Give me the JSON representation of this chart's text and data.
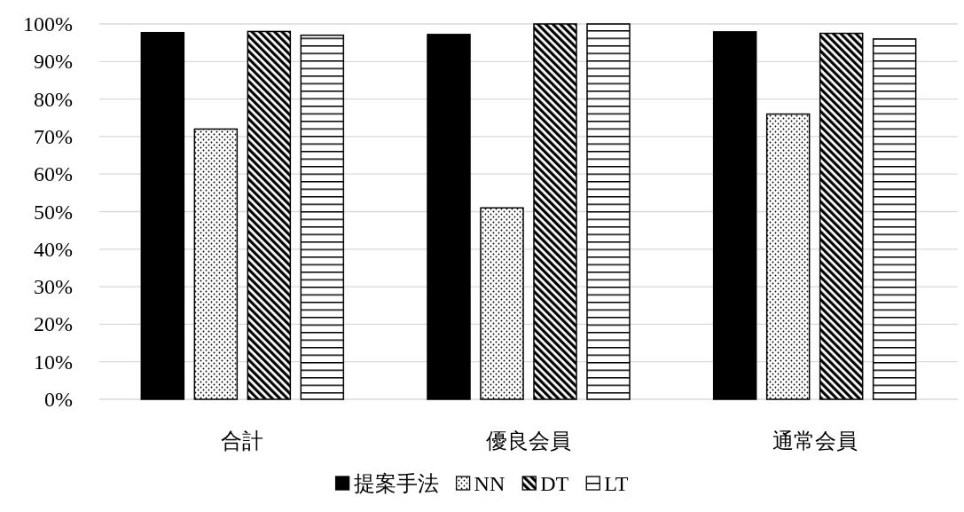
{
  "chart_data": {
    "type": "bar",
    "categories": [
      "合計",
      "優良会員",
      "通常会員"
    ],
    "series": [
      {
        "name": "提案手法",
        "color": "#000000",
        "values": [
          97.7,
          97.2,
          97.9
        ]
      },
      {
        "name": "NN",
        "color": "#000000",
        "values": [
          72,
          51,
          76
        ]
      },
      {
        "name": "DT",
        "color": "#000000",
        "values": [
          98,
          100,
          97.5
        ]
      },
      {
        "name": "LT",
        "color": "#000000",
        "values": [
          97,
          100,
          96
        ]
      }
    ],
    "ylim": [
      0,
      100
    ],
    "yticks": [
      {
        "value": 0,
        "label": "0%"
      },
      {
        "value": 10,
        "label": "10%"
      },
      {
        "value": 20,
        "label": "20%"
      },
      {
        "value": 30,
        "label": "30%"
      },
      {
        "value": 40,
        "label": "40%"
      },
      {
        "value": 50,
        "label": "50%"
      },
      {
        "value": 60,
        "label": "60%"
      },
      {
        "value": 70,
        "label": "70%"
      },
      {
        "value": 80,
        "label": "80%"
      },
      {
        "value": 90,
        "label": "90%"
      },
      {
        "value": 100,
        "label": "100%"
      }
    ],
    "grid": "y",
    "legend": "bottom"
  }
}
